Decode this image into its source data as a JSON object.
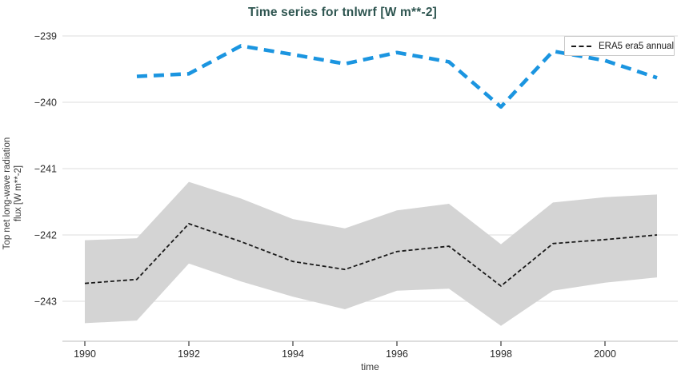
{
  "chart_data": {
    "type": "line",
    "title": "Time series for tnlwrf [W m**-2]",
    "xlabel": "time",
    "ylabel": "Top net long-wave radiation flux [W m**-2]",
    "ylabel_lines": [
      "Top net long-wave radiation",
      "flux [W m**-2]"
    ],
    "x_ticks": [
      1990,
      1992,
      1994,
      1996,
      1998,
      2000
    ],
    "y_ticks": [
      -239,
      -240,
      -241,
      -242,
      -243
    ],
    "xlim": [
      1989.57,
      2001.43
    ],
    "ylim": [
      -243.6,
      -238.8
    ],
    "grid": "horizontal-only",
    "legend_position": "top-right",
    "series": [
      {
        "name": "ERA5 era5 annual",
        "color": "#1a1a1a",
        "style": "dashed",
        "in_legend": true,
        "x": [
          1990,
          1991,
          1992,
          1993,
          1994,
          1995,
          1996,
          1997,
          1998,
          1999,
          2000,
          2001
        ],
        "values": [
          -242.73,
          -242.67,
          -241.83,
          -242.1,
          -242.4,
          -242.52,
          -242.25,
          -242.17,
          -242.77,
          -242.13,
          -242.07,
          -242.0
        ],
        "band_upper": [
          -242.08,
          -242.05,
          -241.2,
          -241.45,
          -241.76,
          -241.9,
          -241.63,
          -241.53,
          -242.14,
          -241.51,
          -241.43,
          -241.39
        ],
        "band_lower": [
          -243.33,
          -243.29,
          -242.43,
          -242.7,
          -242.93,
          -243.12,
          -242.84,
          -242.81,
          -243.37,
          -242.84,
          -242.72,
          -242.64
        ],
        "band_color": "#d4d4d4"
      },
      {
        "name": "",
        "color": "#1b95e0",
        "style": "dashed",
        "in_legend": false,
        "x": [
          1991,
          1992,
          1993,
          1994,
          1995,
          1996,
          1997,
          1998,
          1999,
          2000,
          2001
        ],
        "values": [
          -239.61,
          -239.57,
          -239.15,
          -239.28,
          -239.42,
          -239.25,
          -239.39,
          -240.07,
          -239.23,
          -239.37,
          -239.63
        ]
      }
    ]
  },
  "legend": {
    "items": [
      {
        "label": "ERA5 era5 annual"
      }
    ]
  },
  "colors": {
    "title": "#2e5550",
    "blue_line": "#1b95e0",
    "black_line": "#1a1a1a",
    "band": "#d4d4d4",
    "gridline": "#e4e4e4",
    "axis_line": "#d4d4d4",
    "tick_mark": "#555555",
    "tick_label": "#2b2b2b"
  }
}
